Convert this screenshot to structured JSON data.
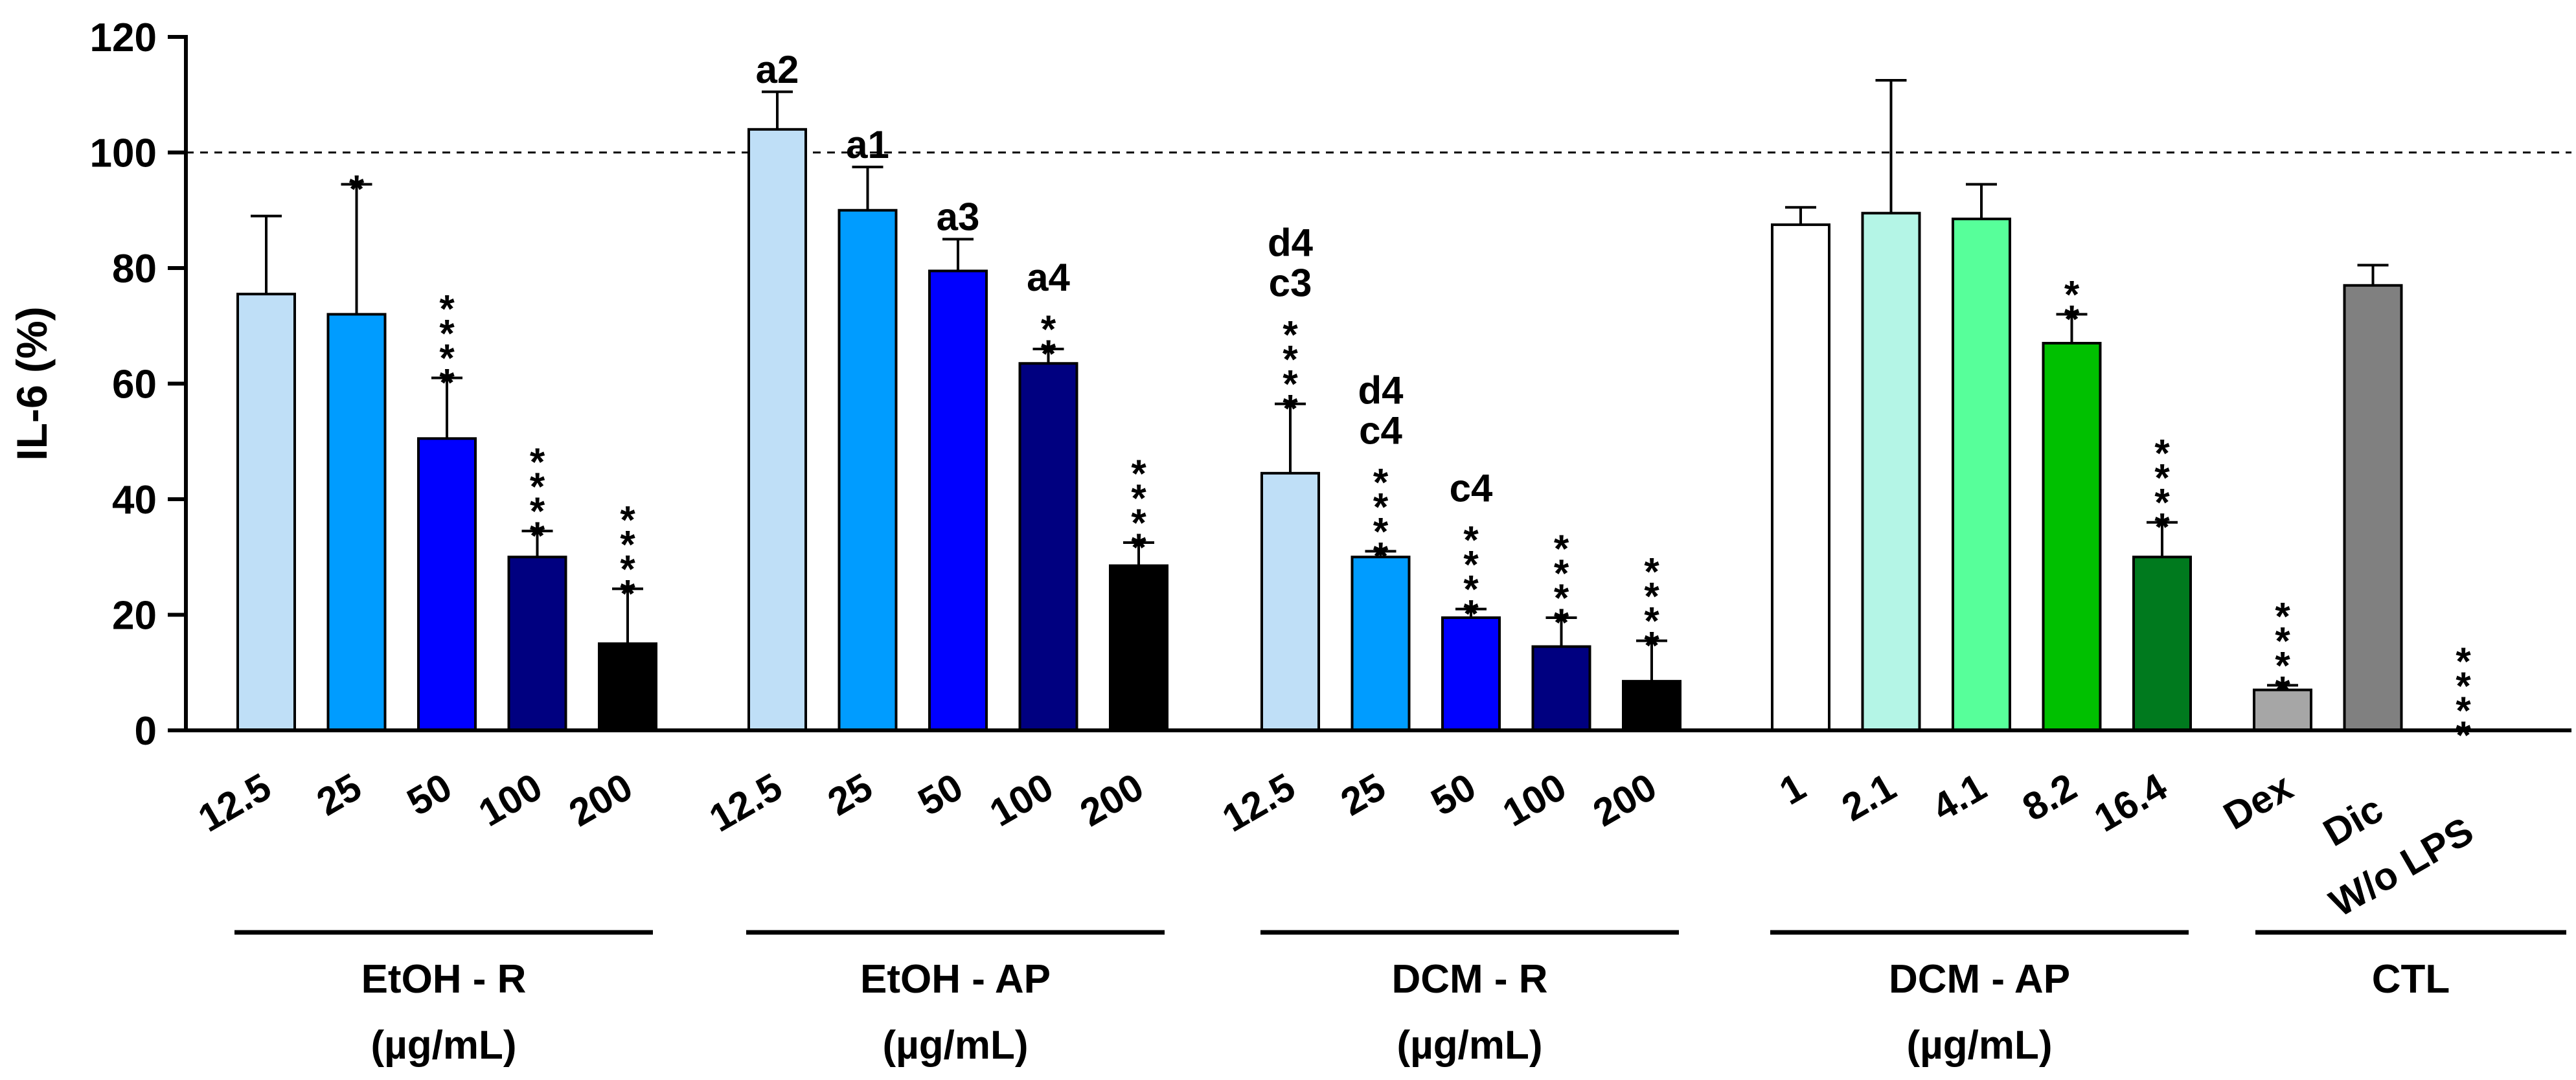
{
  "chart_data": {
    "type": "bar",
    "ylabel": "IL-6 (%)",
    "ylim": [
      0,
      120
    ],
    "yticks": [
      0,
      20,
      40,
      60,
      80,
      100,
      120
    ],
    "reference_line": 100,
    "groups": [
      {
        "name": "EtOH - R",
        "unit": "(µg/mL)",
        "bars": [
          {
            "label": "12.5",
            "value": 75.5,
            "error": 13.5,
            "color": "#bfdff7",
            "annotation": []
          },
          {
            "label": "25",
            "value": 72,
            "error": 22.5,
            "color": "#009cff",
            "annotation": [
              "*"
            ]
          },
          {
            "label": "50",
            "value": 50.5,
            "error": 10.5,
            "color": "#0000ff",
            "annotation": [
              "*",
              "*",
              "*",
              "*"
            ]
          },
          {
            "label": "100",
            "value": 30,
            "error": 4.5,
            "color": "#000080",
            "annotation": [
              "*",
              "*",
              "*",
              "*"
            ]
          },
          {
            "label": "200",
            "value": 15,
            "error": 9.5,
            "color": "#000000",
            "annotation": [
              "*",
              "*",
              "*",
              "*"
            ]
          }
        ]
      },
      {
        "name": "EtOH - AP",
        "unit": "(µg/mL)",
        "bars": [
          {
            "label": "12.5",
            "value": 104,
            "error": 6.5,
            "color": "#bfdff7",
            "annotation": [
              "a2"
            ]
          },
          {
            "label": "25",
            "value": 90,
            "error": 7.5,
            "color": "#009cff",
            "annotation": [
              "a1"
            ]
          },
          {
            "label": "50",
            "value": 79.5,
            "error": 5.5,
            "color": "#0000ff",
            "annotation": [
              "a3"
            ]
          },
          {
            "label": "100",
            "value": 63.5,
            "error": 2.5,
            "color": "#000080",
            "annotation": [
              "a4",
              "*",
              "*"
            ]
          },
          {
            "label": "200",
            "value": 28.5,
            "error": 4,
            "color": "#000000",
            "annotation": [
              "*",
              "*",
              "*",
              "*"
            ]
          }
        ]
      },
      {
        "name": "DCM - R",
        "unit": "(µg/mL)",
        "bars": [
          {
            "label": "12.5",
            "value": 44.5,
            "error": 12,
            "color": "#bfdff7",
            "annotation": [
              "d4",
              "c3",
              "*",
              "*",
              "*",
              "*"
            ]
          },
          {
            "label": "25",
            "value": 30,
            "error": 1,
            "color": "#009cff",
            "annotation": [
              "d4",
              "c4",
              "*",
              "*",
              "*",
              "*"
            ]
          },
          {
            "label": "50",
            "value": 19.5,
            "error": 1.5,
            "color": "#0000ff",
            "annotation": [
              "c4",
              "*",
              "*",
              "*",
              "*"
            ]
          },
          {
            "label": "100",
            "value": 14.5,
            "error": 5,
            "color": "#000080",
            "annotation": [
              "*",
              "*",
              "*",
              "*"
            ]
          },
          {
            "label": "200",
            "value": 8.5,
            "error": 7,
            "color": "#000000",
            "annotation": [
              "*",
              "*",
              "*",
              "*"
            ]
          }
        ]
      },
      {
        "name": "DCM - AP",
        "unit": "(µg/mL)",
        "bars": [
          {
            "label": "1",
            "value": 87.5,
            "error": 3,
            "color": "#ffffff",
            "annotation": []
          },
          {
            "label": "2.1",
            "value": 89.5,
            "error": 23,
            "color": "#b4f5e6",
            "annotation": []
          },
          {
            "label": "4.1",
            "value": 88.5,
            "error": 6,
            "color": "#57ff9a",
            "annotation": []
          },
          {
            "label": "8.2",
            "value": 67,
            "error": 5,
            "color": "#00c000",
            "annotation": [
              "*",
              "*"
            ]
          },
          {
            "label": "16.4",
            "value": 30,
            "error": 6,
            "color": "#007a1e",
            "annotation": [
              "*",
              "*",
              "*",
              "*"
            ]
          }
        ]
      },
      {
        "name": "CTL",
        "unit": "",
        "bars": [
          {
            "label": "Dex",
            "value": 7,
            "error": 0.8,
            "color": "#a6a6a6",
            "annotation": [
              "*",
              "*",
              "*",
              "*"
            ]
          },
          {
            "label": "Dic",
            "value": 77,
            "error": 3.5,
            "color": "#808080",
            "annotation": []
          },
          {
            "label": "W/o LPS",
            "value": 0,
            "error": 0,
            "color": "#ffffff",
            "annotation": [
              "*",
              "*",
              "*",
              "*"
            ]
          }
        ]
      }
    ]
  }
}
